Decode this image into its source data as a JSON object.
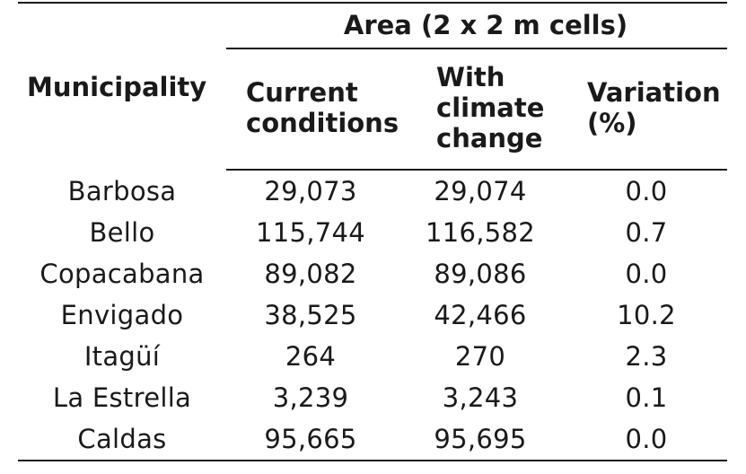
{
  "header": {
    "municipality": "Municipality",
    "area_group": "Area (2 x 2 m cells)",
    "current": [
      "Current",
      "conditions"
    ],
    "climate": [
      "With",
      "climate",
      "change"
    ],
    "variation": [
      "Variation",
      "(%)"
    ]
  },
  "rows": [
    {
      "municipality": "Barbosa",
      "current": "29,073",
      "climate": "29,074",
      "variation": "0.0"
    },
    {
      "municipality": "Bello",
      "current": "115,744",
      "climate": "116,582",
      "variation": "0.7"
    },
    {
      "municipality": "Copacabana",
      "current": "89,082",
      "climate": "89,086",
      "variation": "0.0"
    },
    {
      "municipality": "Envigado",
      "current": "38,525",
      "climate": "42,466",
      "variation": "10.2"
    },
    {
      "municipality": "Itagüí",
      "current": "264",
      "climate": "270",
      "variation": "2.3"
    },
    {
      "municipality": "La Estrella",
      "current": "3,239",
      "climate": "3,243",
      "variation": "0.1"
    },
    {
      "municipality": "Caldas",
      "current": "95,665",
      "climate": "95,695",
      "variation": "0.0"
    }
  ]
}
